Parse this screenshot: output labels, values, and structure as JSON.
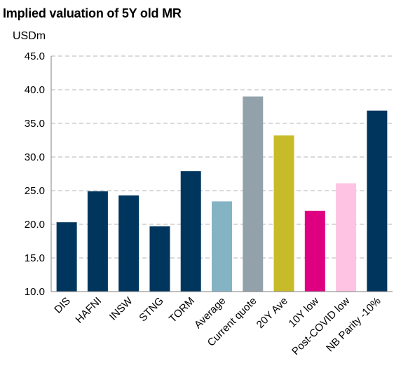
{
  "chart_data": {
    "type": "bar",
    "title": "Implied valuation of 5Y old MR",
    "ylabel": "USDm",
    "xlabel": "",
    "ylim": [
      10.0,
      45.0
    ],
    "yticks": [
      "10.0",
      "15.0",
      "20.0",
      "25.0",
      "30.0",
      "35.0",
      "40.0",
      "45.0"
    ],
    "grid": true,
    "categories": [
      "DIS",
      "HAFNI",
      "INSW",
      "STNG",
      "TORM",
      "Average",
      "Current quote",
      "20Y Ave",
      "10Y low",
      "Post-COVID low",
      "NB Parity -10%"
    ],
    "values": [
      20.3,
      24.9,
      24.3,
      19.7,
      27.9,
      23.4,
      39.0,
      33.2,
      22.0,
      26.1,
      36.9
    ],
    "colors": [
      "#00365e",
      "#00365e",
      "#00365e",
      "#00365e",
      "#00365e",
      "#84b3c4",
      "#93a2aa",
      "#c7bb2a",
      "#de0080",
      "#fec3e3",
      "#00365e"
    ]
  }
}
